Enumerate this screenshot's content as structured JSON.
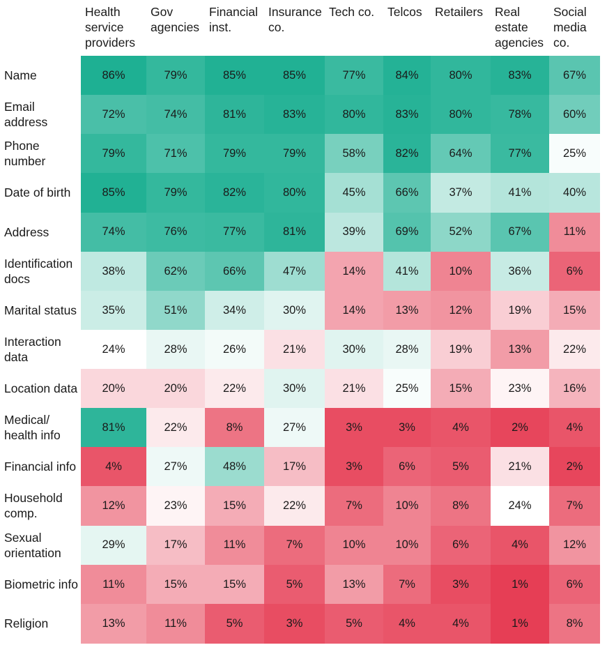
{
  "chart_data": {
    "type": "heatmap",
    "title": "",
    "columns": [
      "Health service providers",
      "Gov agencies",
      "Financial inst.",
      "Insurance co.",
      "Tech co.",
      "Telcos",
      "Retailers",
      "Real estate agencies",
      "Social media co."
    ],
    "rows": [
      "Name",
      "Email address",
      "Phone number",
      "Date of birth",
      "Address",
      "Identification docs",
      "Marital status",
      "Interaction data",
      "Location data",
      "Medical/ health info",
      "Financial info",
      "Household comp.",
      "Sexual orientation",
      "Biometric info",
      "Religion"
    ],
    "values": [
      [
        86,
        79,
        85,
        85,
        77,
        84,
        80,
        83,
        67
      ],
      [
        72,
        74,
        81,
        83,
        80,
        83,
        80,
        78,
        60
      ],
      [
        79,
        71,
        79,
        79,
        58,
        82,
        64,
        77,
        25
      ],
      [
        85,
        79,
        82,
        80,
        45,
        66,
        37,
        41,
        40
      ],
      [
        74,
        76,
        77,
        81,
        39,
        69,
        52,
        67,
        11
      ],
      [
        38,
        62,
        66,
        47,
        14,
        41,
        10,
        36,
        6
      ],
      [
        35,
        51,
        34,
        30,
        14,
        13,
        12,
        19,
        15
      ],
      [
        24,
        28,
        26,
        21,
        30,
        28,
        19,
        13,
        22
      ],
      [
        20,
        20,
        22,
        30,
        21,
        25,
        15,
        23,
        16
      ],
      [
        81,
        22,
        8,
        27,
        3,
        3,
        4,
        2,
        4
      ],
      [
        4,
        27,
        48,
        17,
        3,
        6,
        5,
        21,
        2
      ],
      [
        12,
        23,
        15,
        22,
        7,
        10,
        8,
        24,
        7
      ],
      [
        29,
        17,
        11,
        7,
        10,
        10,
        6,
        4,
        12
      ],
      [
        11,
        15,
        15,
        5,
        13,
        7,
        3,
        1,
        6
      ],
      [
        13,
        11,
        5,
        3,
        5,
        4,
        4,
        1,
        8
      ]
    ],
    "value_suffix": "%",
    "color_scale": {
      "low": "#e63e55",
      "mid": "#ffffff",
      "high": "#1eb093",
      "mid_value": 24,
      "low_value": 1,
      "high_value": 86
    }
  }
}
